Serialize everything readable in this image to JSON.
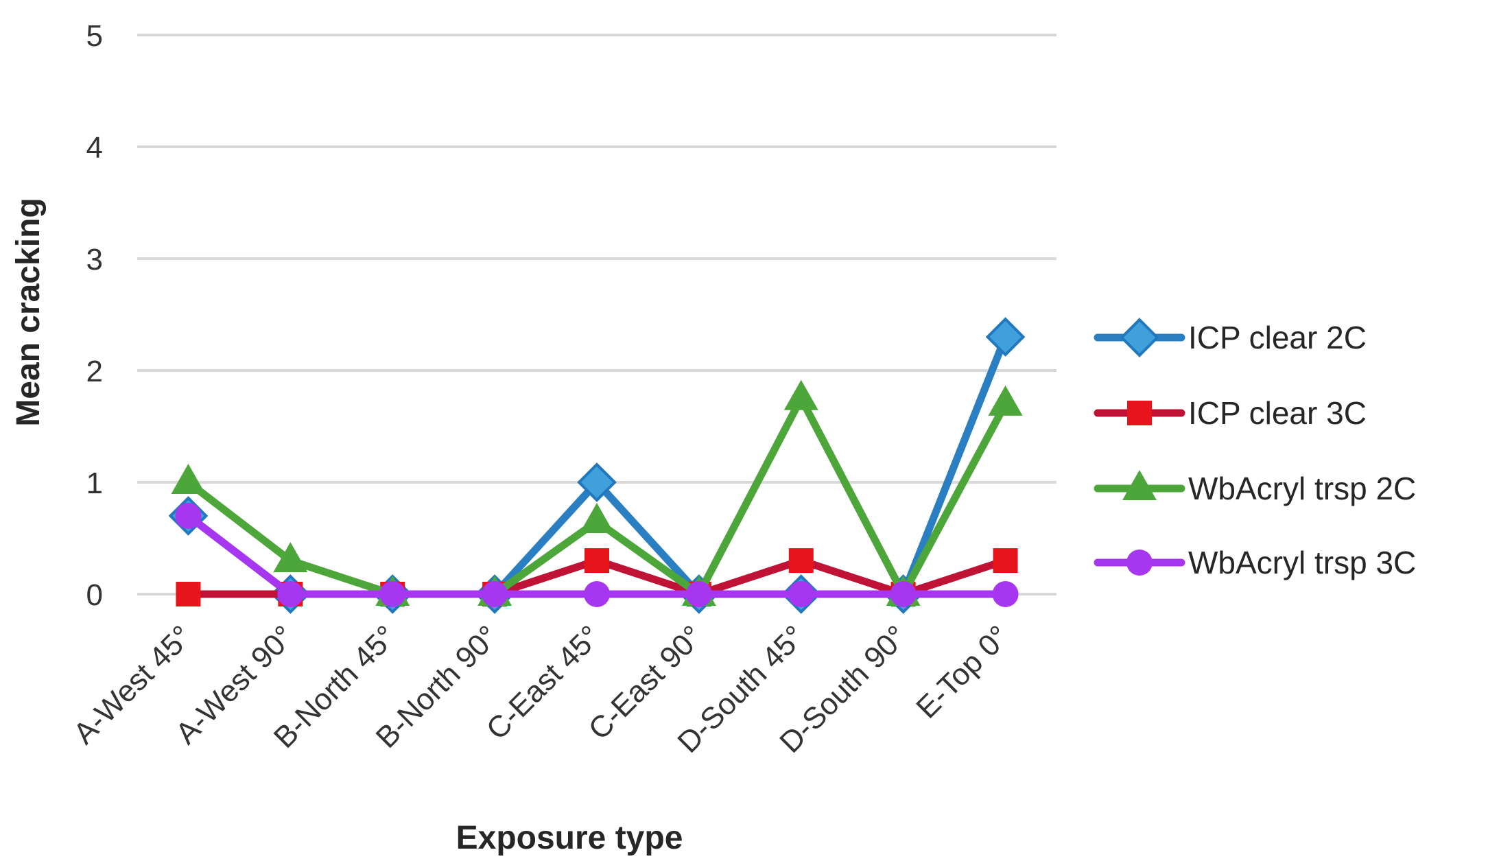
{
  "chart_data": {
    "type": "line",
    "title": "",
    "xlabel": "Exposure type",
    "ylabel": "Mean cracking",
    "ylim": [
      0,
      5
    ],
    "yticks": [
      0,
      1,
      2,
      3,
      4,
      5
    ],
    "grid": "horizontal-only",
    "legend_position": "right",
    "background_color": "#FFFFFF",
    "gridline_color": "#D9D9D9",
    "axis_text_color": "#333333",
    "categories": [
      "A-West 45°",
      "A-West 90°",
      "B-North 45°",
      "B-North 90°",
      "C-East 45°",
      "C-East 90°",
      "D-South 45°",
      "D-South 90°",
      "E-Top 0°"
    ],
    "series": [
      {
        "name": "ICP clear 2C",
        "marker": "diamond",
        "line_color": "#2A7FC2",
        "marker_color": "#3FA0DB",
        "marker_edge": "#2277BD",
        "values": [
          0.7,
          0,
          0,
          0,
          1,
          0,
          0,
          0,
          2.3
        ]
      },
      {
        "name": "ICP clear 3C",
        "marker": "square",
        "line_color": "#C01235",
        "marker_color": "#E8141B",
        "marker_edge": "#C01235",
        "values": [
          0,
          0,
          0,
          0,
          0.3,
          0,
          0.3,
          0,
          0.3
        ]
      },
      {
        "name": "WbAcryl trsp 2C",
        "marker": "triangle",
        "line_color": "#4DA63A",
        "marker_color": "#4DA63A",
        "marker_edge": "#44992F",
        "values": [
          1,
          0.3,
          0,
          0,
          0.65,
          0,
          1.75,
          0,
          1.7
        ]
      },
      {
        "name": "WbAcryl trsp 3C",
        "marker": "circle",
        "line_color": "#A636F0",
        "marker_color": "#A636F0",
        "marker_edge": "#9A2BE0",
        "values": [
          0.7,
          0,
          0,
          0,
          0,
          0,
          0,
          0,
          0
        ]
      }
    ]
  }
}
